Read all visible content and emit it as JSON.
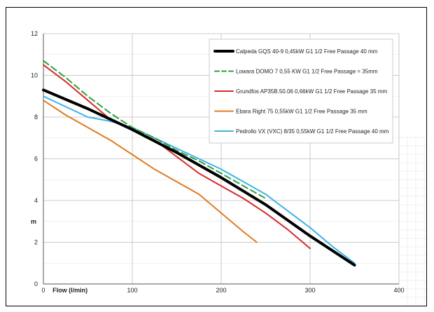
{
  "chart_data": {
    "type": "line",
    "title": "",
    "xlabel": "Flow (l/min)",
    "ylabel": "m",
    "xlim": [
      0,
      400
    ],
    "ylim": [
      0,
      12
    ],
    "x_ticks": [
      0,
      100,
      200,
      300,
      400
    ],
    "y_ticks": [
      0,
      2,
      4,
      6,
      8,
      10,
      12
    ],
    "grid": true,
    "legend_position": "top-right",
    "series": [
      {
        "name": "Calpeda GQS 40-9  0,45kW  G1 1/2 Free Passage 40 mm",
        "color": "#000000",
        "style": "solid-thick",
        "x": [
          0,
          50,
          100,
          150,
          200,
          250,
          300,
          350
        ],
        "y": [
          9.3,
          8.4,
          7.4,
          6.3,
          5.1,
          3.8,
          2.3,
          0.9
        ]
      },
      {
        "name": "Lowara DOMO 7  0,55 KW  G1 1/2 Free Passage = 35mm",
        "color": "#2e9e3e",
        "style": "dashed",
        "x": [
          0,
          25,
          50,
          75,
          100,
          125,
          150,
          175,
          200,
          225,
          250
        ],
        "y": [
          10.7,
          9.9,
          9.0,
          8.2,
          7.5,
          7.0,
          6.4,
          5.9,
          5.3,
          4.7,
          4.1
        ]
      },
      {
        "name": "Grundfos AP35B.50.06  0,66kW  G1 1/2  Free Passage 35 mm",
        "color": "#d62b2b",
        "style": "solid",
        "x": [
          0,
          25,
          50,
          75,
          100,
          125,
          150,
          175,
          200,
          225,
          250,
          275,
          300
        ],
        "y": [
          10.5,
          9.7,
          8.8,
          7.9,
          7.4,
          6.9,
          6.1,
          5.3,
          4.7,
          4.1,
          3.4,
          2.6,
          1.7
        ]
      },
      {
        "name": "Ebara Right 75  0,55kW  G1 1/2 Free Passage 35 mm",
        "color": "#e07b20",
        "style": "solid",
        "x": [
          0,
          25,
          50,
          75,
          100,
          125,
          150,
          175,
          200,
          225,
          240
        ],
        "y": [
          8.8,
          8.1,
          7.5,
          6.9,
          6.2,
          5.5,
          4.9,
          4.3,
          3.4,
          2.5,
          2.0
        ]
      },
      {
        "name": "Pedrollo VX (VXC) 8/35  0,55kW  G1 1/2 Free Passage 40 mm",
        "color": "#3bb4e8",
        "style": "solid",
        "x": [
          0,
          25,
          50,
          75,
          100,
          125,
          150,
          175,
          200,
          225,
          250,
          275,
          300,
          325,
          350
        ],
        "y": [
          9.0,
          8.5,
          8.0,
          7.8,
          7.5,
          7.0,
          6.5,
          6.0,
          5.5,
          4.9,
          4.3,
          3.5,
          2.7,
          1.8,
          1.0
        ]
      }
    ]
  }
}
